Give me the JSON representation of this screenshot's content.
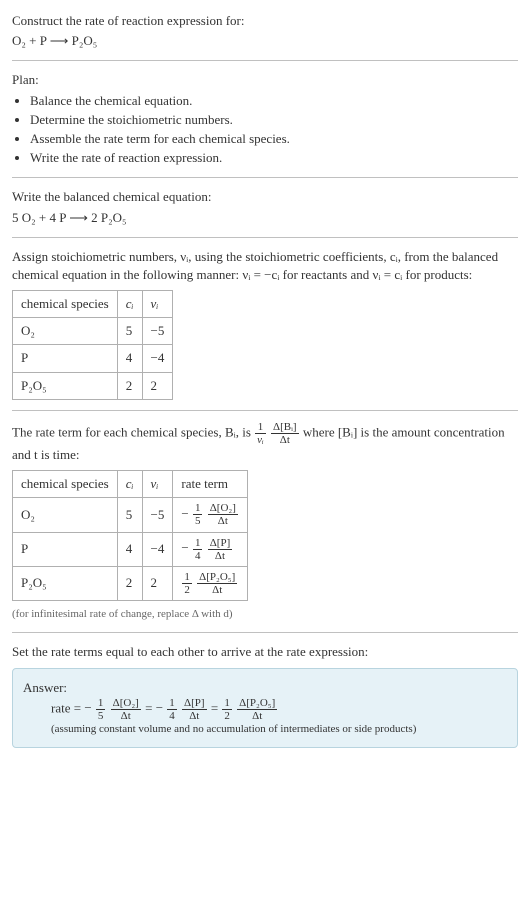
{
  "prompt_label": "Construct the rate of reaction expression for:",
  "unbalanced_equation": "O₂ + P ⟶ P₂O₅",
  "plan_label": "Plan:",
  "plan_items": [
    "Balance the chemical equation.",
    "Determine the stoichiometric numbers.",
    "Assemble the rate term for each chemical species.",
    "Write the rate of reaction expression."
  ],
  "balanced_label": "Write the balanced chemical equation:",
  "balanced_equation": "5 O₂ + 4 P ⟶ 2 P₂O₅",
  "stoich_intro_1": "Assign stoichiometric numbers, νᵢ, using the stoichiometric coefficients, cᵢ, from the balanced chemical equation in the following manner: νᵢ = −cᵢ for reactants and νᵢ = cᵢ for products:",
  "stoich_table": {
    "headers": {
      "species": "chemical species",
      "ci": "cᵢ",
      "vi": "νᵢ"
    },
    "rows": [
      {
        "species": "O₂",
        "ci": "5",
        "vi": "−5"
      },
      {
        "species": "P",
        "ci": "4",
        "vi": "−4"
      },
      {
        "species": "P₂O₅",
        "ci": "2",
        "vi": "2"
      }
    ]
  },
  "rate_term_intro_pre": "The rate term for each chemical species, Bᵢ, is ",
  "rate_term_frac1_num": "1",
  "rate_term_frac1_den": "νᵢ",
  "rate_term_frac2_num": "Δ[Bᵢ]",
  "rate_term_frac2_den": "Δt",
  "rate_term_intro_post": " where [Bᵢ] is the amount concentration and t is time:",
  "rate_table": {
    "headers": {
      "species": "chemical species",
      "ci": "cᵢ",
      "vi": "νᵢ",
      "term": "rate term"
    },
    "rows": [
      {
        "species": "O₂",
        "ci": "5",
        "vi": "−5",
        "sign": "−",
        "coef_num": "1",
        "coef_den": "5",
        "d_num": "Δ[O₂]",
        "d_den": "Δt"
      },
      {
        "species": "P",
        "ci": "4",
        "vi": "−4",
        "sign": "−",
        "coef_num": "1",
        "coef_den": "4",
        "d_num": "Δ[P]",
        "d_den": "Δt"
      },
      {
        "species": "P₂O₅",
        "ci": "2",
        "vi": "2",
        "sign": "",
        "coef_num": "1",
        "coef_den": "2",
        "d_num": "Δ[P₂O₅]",
        "d_den": "Δt"
      }
    ]
  },
  "infinitesimal_note": "(for infinitesimal rate of change, replace Δ with d)",
  "set_equal_label": "Set the rate terms equal to each other to arrive at the rate expression:",
  "answer_label": "Answer:",
  "rate_eq": {
    "lhs": "rate = ",
    "terms": [
      {
        "sign": "−",
        "coef_num": "1",
        "coef_den": "5",
        "d_num": "Δ[O₂]",
        "d_den": "Δt"
      },
      {
        "sign": "−",
        "coef_num": "1",
        "coef_den": "4",
        "d_num": "Δ[P]",
        "d_den": "Δt"
      },
      {
        "sign": "",
        "coef_num": "1",
        "coef_den": "2",
        "d_num": "Δ[P₂O₅]",
        "d_den": "Δt"
      }
    ],
    "joiner": " = "
  },
  "assumption_note": "(assuming constant volume and no accumulation of intermediates or side products)",
  "colors": {
    "text": "#333333",
    "separator": "#c0c0c0",
    "table_border": "#b0b0b0",
    "note": "#666666",
    "answer_bg": "#e6f2f7",
    "answer_border": "#b8d4df"
  }
}
